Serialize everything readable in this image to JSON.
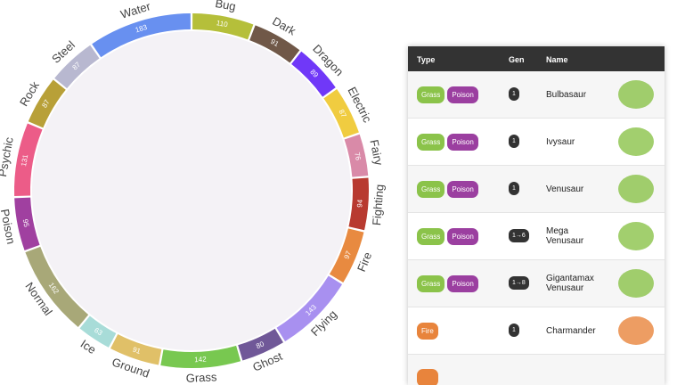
{
  "chart_data": {
    "type": "chord",
    "categories": [
      "Bug",
      "Dark",
      "Dragon",
      "Electric",
      "Fairy",
      "Fighting",
      "Fire",
      "Flying",
      "Ghost",
      "Grass",
      "Ground",
      "Ice",
      "Normal",
      "Poison",
      "Psychic",
      "Rock",
      "Steel",
      "Water"
    ],
    "values": [
      110,
      91,
      89,
      87,
      76,
      94,
      97,
      143,
      80,
      142,
      91,
      63,
      162,
      95,
      131,
      87,
      87,
      183
    ],
    "colors": [
      "#b5bf3a",
      "#705848",
      "#7038f8",
      "#f0cc40",
      "#d98aa8",
      "#b83a30",
      "#e88a40",
      "#a890f0",
      "#705898",
      "#78c850",
      "#e0c068",
      "#a8dcd8",
      "#a8a878",
      "#a040a0",
      "#ec5c88",
      "#b8a038",
      "#b8b8d0",
      "#6890f0"
    ]
  },
  "table": {
    "columns": [
      "Type",
      "Gen",
      "Name"
    ],
    "type_colors": {
      "Grass": "#8bc34a",
      "Poison": "#9b3fa0",
      "Fire": "#e8843c"
    },
    "rows": [
      {
        "types": [
          "Grass",
          "Poison"
        ],
        "gen": "1",
        "name": "Bulbasaur"
      },
      {
        "types": [
          "Grass",
          "Poison"
        ],
        "gen": "1",
        "name": "Ivysaur"
      },
      {
        "types": [
          "Grass",
          "Poison"
        ],
        "gen": "1",
        "name": "Venusaur"
      },
      {
        "types": [
          "Grass",
          "Poison"
        ],
        "gen": "1→6",
        "name": "Mega Venusaur"
      },
      {
        "types": [
          "Grass",
          "Poison"
        ],
        "gen": "1→8",
        "name": "Gigantamax Venusaur"
      },
      {
        "types": [
          "Fire"
        ],
        "gen": "1",
        "name": "Charmander"
      }
    ]
  }
}
